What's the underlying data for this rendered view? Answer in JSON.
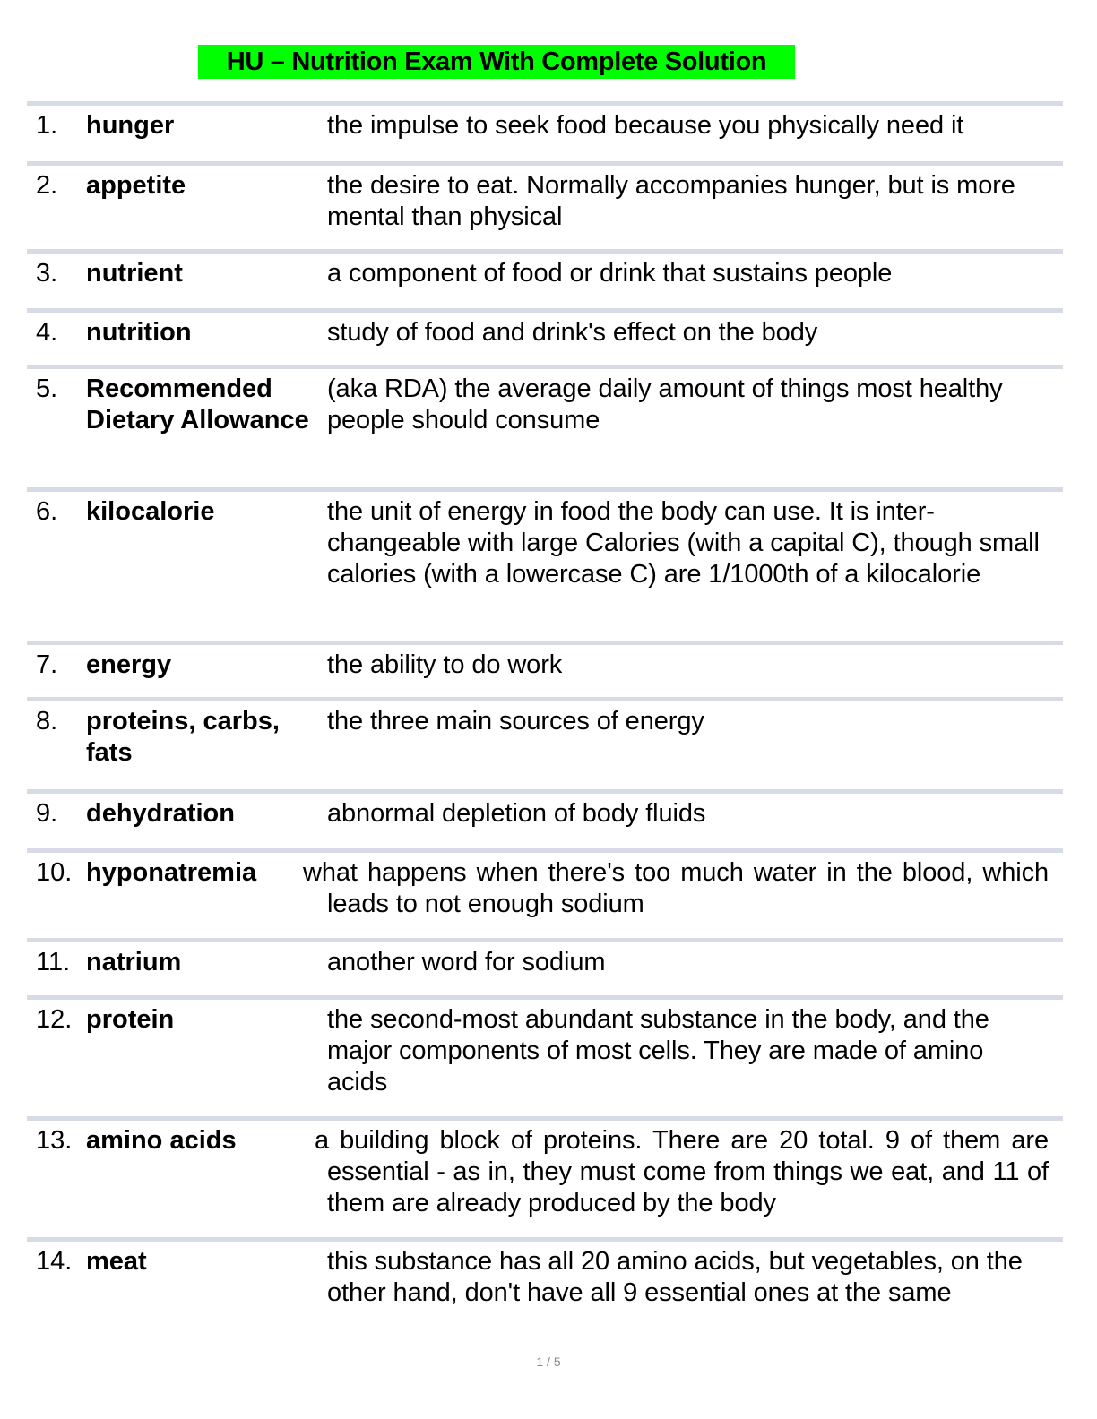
{
  "title": "HU – Nutrition Exam With Complete Solution",
  "items": [
    {
      "num": "1.",
      "term": "hunger",
      "definition": "the impulse to seek food because you physically need it"
    },
    {
      "num": "2.",
      "term": "appetite",
      "definition": "the desire to eat. Normally accompanies hunger, but is more mental than physical"
    },
    {
      "num": "3.",
      "term": "nutrient",
      "definition": "a component of food or drink that sustains people"
    },
    {
      "num": "4.",
      "term": "nutrition",
      "definition": "study of food and drink's effect on the body"
    },
    {
      "num": "5.",
      "term": "Recommended Dietary Allowance",
      "definition": "(aka RDA) the average daily amount of things most healthy people should consume"
    },
    {
      "num": "6.",
      "term": "kilocalorie",
      "definition": "the unit of energy in food the body can use. It is inter-changeable with large Calories (with a capital C), though small calories (with a lowercase C) are 1/1000th of a kilocalorie"
    },
    {
      "num": "7.",
      "term": "energy",
      "definition": "the ability to do work"
    },
    {
      "num": "8.",
      "term": "proteins, carbs, fats",
      "definition": "the three main sources of energy"
    },
    {
      "num": "9.",
      "term": "dehydration",
      "definition": "abnormal depletion of body fluids"
    },
    {
      "num": "10.",
      "term": "hyponatremia",
      "definition": "what happens when there's too much water in the blood, which leads to not enough sodium"
    },
    {
      "num": "11.",
      "term": "natrium",
      "definition": "another word for sodium"
    },
    {
      "num": "12.",
      "term": "protein",
      "definition": "the second-most abundant substance in the body, and the major components of most cells. They are made of amino acids"
    },
    {
      "num": "13.",
      "term": "amino acids",
      "definition": "a building block of proteins. There are 20 total. 9 of them are essential - as in, they must come from things we eat, and 11 of them are already produced by the body"
    },
    {
      "num": "14.",
      "term": "meat",
      "definition": "this substance has all 20 amino acids, but vegetables, on the other hand, don't have all 9 essential ones at the same"
    }
  ],
  "pager": "1 / 5"
}
